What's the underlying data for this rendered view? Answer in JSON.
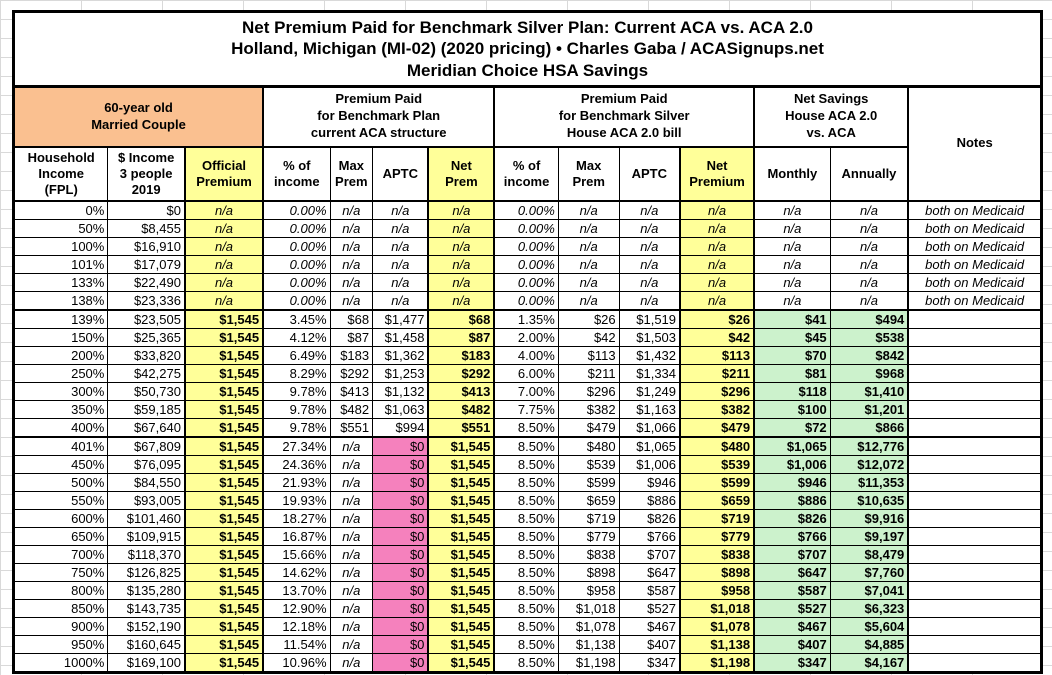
{
  "title": {
    "line1": "Net Premium Paid for Benchmark Silver Plan: Current ACA vs. ACA 2.0",
    "line2": "Holland, Michigan (MI-02) (2020 pricing) • Charles Gaba / ACASignups.net",
    "line3": "Meridian Choice HSA Savings"
  },
  "groups": {
    "profile": "60-year old\nMarried Couple",
    "aca": "Premium Paid\nfor Benchmark Plan\ncurrent ACA structure",
    "aca20": "Premium Paid\nfor Benchmark Silver\nHouse ACA 2.0 bill",
    "savings": "Net Savings\nHouse ACA 2.0\nvs. ACA",
    "notes": "Notes"
  },
  "colors": {
    "peach_profile": "#FAC090",
    "highlight_yellow": "#FFFF99",
    "no_subsidy_pink": "#F581BD",
    "savings_green": "#CCF2CC"
  },
  "table": {
    "columns": [
      {
        "id": "fpl",
        "label": "Household\nIncome\n(FPL)"
      },
      {
        "id": "income",
        "label": "$ Income\n3 people\n2019"
      },
      {
        "id": "official-premium",
        "label": "Official\nPremium"
      },
      {
        "id": "aca-pct-of-income",
        "label": "% of\nincome"
      },
      {
        "id": "aca-max-prem",
        "label": "Max\nPrem"
      },
      {
        "id": "aca-aptc",
        "label": "APTC"
      },
      {
        "id": "aca-net-prem",
        "label": "Net\nPrem"
      },
      {
        "id": "aca20-pct-of-income",
        "label": "% of\nincome"
      },
      {
        "id": "aca20-max-prem",
        "label": "Max\nPrem"
      },
      {
        "id": "aca20-aptc",
        "label": "APTC"
      },
      {
        "id": "aca20-net-premium",
        "label": "Net\nPremium"
      },
      {
        "id": "savings-monthly",
        "label": "Monthly"
      },
      {
        "id": "savings-annually",
        "label": "Annually"
      }
    ],
    "rows": [
      {
        "type": "medicaid",
        "cells": [
          "0%",
          "$0",
          "n/a",
          "0.00%",
          "n/a",
          "n/a",
          "n/a",
          "0.00%",
          "n/a",
          "n/a",
          "n/a",
          "n/a",
          "n/a",
          "both on Medicaid"
        ]
      },
      {
        "type": "medicaid",
        "cells": [
          "50%",
          "$8,455",
          "n/a",
          "0.00%",
          "n/a",
          "n/a",
          "n/a",
          "0.00%",
          "n/a",
          "n/a",
          "n/a",
          "n/a",
          "n/a",
          "both on Medicaid"
        ]
      },
      {
        "type": "medicaid",
        "cells": [
          "100%",
          "$16,910",
          "n/a",
          "0.00%",
          "n/a",
          "n/a",
          "n/a",
          "0.00%",
          "n/a",
          "n/a",
          "n/a",
          "n/a",
          "n/a",
          "both on Medicaid"
        ]
      },
      {
        "type": "medicaid",
        "cells": [
          "101%",
          "$17,079",
          "n/a",
          "0.00%",
          "n/a",
          "n/a",
          "n/a",
          "0.00%",
          "n/a",
          "n/a",
          "n/a",
          "n/a",
          "n/a",
          "both on Medicaid"
        ]
      },
      {
        "type": "medicaid",
        "cells": [
          "133%",
          "$22,490",
          "n/a",
          "0.00%",
          "n/a",
          "n/a",
          "n/a",
          "0.00%",
          "n/a",
          "n/a",
          "n/a",
          "n/a",
          "n/a",
          "both on Medicaid"
        ]
      },
      {
        "type": "medicaid",
        "cells": [
          "138%",
          "$23,336",
          "n/a",
          "0.00%",
          "n/a",
          "n/a",
          "n/a",
          "0.00%",
          "n/a",
          "n/a",
          "n/a",
          "n/a",
          "n/a",
          "both on Medicaid"
        ]
      },
      {
        "type": "aptc",
        "cells": [
          "139%",
          "$23,505",
          "$1,545",
          "3.45%",
          "$68",
          "$1,477",
          "$68",
          "1.35%",
          "$26",
          "$1,519",
          "$26",
          "$41",
          "$494",
          ""
        ]
      },
      {
        "type": "aptc",
        "cells": [
          "150%",
          "$25,365",
          "$1,545",
          "4.12%",
          "$87",
          "$1,458",
          "$87",
          "2.00%",
          "$42",
          "$1,503",
          "$42",
          "$45",
          "$538",
          ""
        ]
      },
      {
        "type": "aptc",
        "cells": [
          "200%",
          "$33,820",
          "$1,545",
          "6.49%",
          "$183",
          "$1,362",
          "$183",
          "4.00%",
          "$113",
          "$1,432",
          "$113",
          "$70",
          "$842",
          ""
        ]
      },
      {
        "type": "aptc",
        "cells": [
          "250%",
          "$42,275",
          "$1,545",
          "8.29%",
          "$292",
          "$1,253",
          "$292",
          "6.00%",
          "$211",
          "$1,334",
          "$211",
          "$81",
          "$968",
          ""
        ]
      },
      {
        "type": "aptc",
        "cells": [
          "300%",
          "$50,730",
          "$1,545",
          "9.78%",
          "$413",
          "$1,132",
          "$413",
          "7.00%",
          "$296",
          "$1,249",
          "$296",
          "$118",
          "$1,410",
          ""
        ]
      },
      {
        "type": "aptc",
        "cells": [
          "350%",
          "$59,185",
          "$1,545",
          "9.78%",
          "$482",
          "$1,063",
          "$482",
          "7.75%",
          "$382",
          "$1,163",
          "$382",
          "$100",
          "$1,201",
          ""
        ]
      },
      {
        "type": "aptc",
        "cells": [
          "400%",
          "$67,640",
          "$1,545",
          "9.78%",
          "$551",
          "$994",
          "$551",
          "8.50%",
          "$479",
          "$1,066",
          "$479",
          "$72",
          "$866",
          ""
        ]
      },
      {
        "type": "noaptc",
        "cells": [
          "401%",
          "$67,809",
          "$1,545",
          "27.34%",
          "n/a",
          "$0",
          "$1,545",
          "8.50%",
          "$480",
          "$1,065",
          "$480",
          "$1,065",
          "$12,776",
          ""
        ]
      },
      {
        "type": "noaptc",
        "cells": [
          "450%",
          "$76,095",
          "$1,545",
          "24.36%",
          "n/a",
          "$0",
          "$1,545",
          "8.50%",
          "$539",
          "$1,006",
          "$539",
          "$1,006",
          "$12,072",
          ""
        ]
      },
      {
        "type": "noaptc",
        "cells": [
          "500%",
          "$84,550",
          "$1,545",
          "21.93%",
          "n/a",
          "$0",
          "$1,545",
          "8.50%",
          "$599",
          "$946",
          "$599",
          "$946",
          "$11,353",
          ""
        ]
      },
      {
        "type": "noaptc",
        "cells": [
          "550%",
          "$93,005",
          "$1,545",
          "19.93%",
          "n/a",
          "$0",
          "$1,545",
          "8.50%",
          "$659",
          "$886",
          "$659",
          "$886",
          "$10,635",
          ""
        ]
      },
      {
        "type": "noaptc",
        "cells": [
          "600%",
          "$101,460",
          "$1,545",
          "18.27%",
          "n/a",
          "$0",
          "$1,545",
          "8.50%",
          "$719",
          "$826",
          "$719",
          "$826",
          "$9,916",
          ""
        ]
      },
      {
        "type": "noaptc",
        "cells": [
          "650%",
          "$109,915",
          "$1,545",
          "16.87%",
          "n/a",
          "$0",
          "$1,545",
          "8.50%",
          "$779",
          "$766",
          "$779",
          "$766",
          "$9,197",
          ""
        ]
      },
      {
        "type": "noaptc",
        "cells": [
          "700%",
          "$118,370",
          "$1,545",
          "15.66%",
          "n/a",
          "$0",
          "$1,545",
          "8.50%",
          "$838",
          "$707",
          "$838",
          "$707",
          "$8,479",
          ""
        ]
      },
      {
        "type": "noaptc",
        "cells": [
          "750%",
          "$126,825",
          "$1,545",
          "14.62%",
          "n/a",
          "$0",
          "$1,545",
          "8.50%",
          "$898",
          "$647",
          "$898",
          "$647",
          "$7,760",
          ""
        ]
      },
      {
        "type": "noaptc",
        "cells": [
          "800%",
          "$135,280",
          "$1,545",
          "13.70%",
          "n/a",
          "$0",
          "$1,545",
          "8.50%",
          "$958",
          "$587",
          "$958",
          "$587",
          "$7,041",
          ""
        ]
      },
      {
        "type": "noaptc",
        "cells": [
          "850%",
          "$143,735",
          "$1,545",
          "12.90%",
          "n/a",
          "$0",
          "$1,545",
          "8.50%",
          "$1,018",
          "$527",
          "$1,018",
          "$527",
          "$6,323",
          ""
        ]
      },
      {
        "type": "noaptc",
        "cells": [
          "900%",
          "$152,190",
          "$1,545",
          "12.18%",
          "n/a",
          "$0",
          "$1,545",
          "8.50%",
          "$1,078",
          "$467",
          "$1,078",
          "$467",
          "$5,604",
          ""
        ]
      },
      {
        "type": "noaptc",
        "cells": [
          "950%",
          "$160,645",
          "$1,545",
          "11.54%",
          "n/a",
          "$0",
          "$1,545",
          "8.50%",
          "$1,138",
          "$407",
          "$1,138",
          "$407",
          "$4,885",
          ""
        ]
      },
      {
        "type": "noaptc",
        "cells": [
          "1000%",
          "$169,100",
          "$1,545",
          "10.96%",
          "n/a",
          "$0",
          "$1,545",
          "8.50%",
          "$1,198",
          "$347",
          "$1,198",
          "$347",
          "$4,167",
          ""
        ]
      }
    ]
  }
}
